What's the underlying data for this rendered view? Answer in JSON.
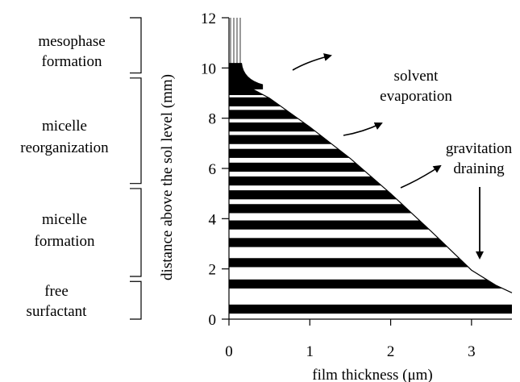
{
  "figure": {
    "xlabel": "film thickness (μm)",
    "ylabel": "distance above the sol level (mm)",
    "x_ticks": [
      "0",
      "1",
      "2",
      "3"
    ],
    "y_ticks": [
      "0",
      "2",
      "4",
      "6",
      "8",
      "10",
      "12"
    ],
    "annotations": {
      "evaporation": [
        "solvent",
        "evaporation"
      ],
      "draining": [
        "gravitation",
        "draining"
      ]
    },
    "stages": [
      {
        "lines": [
          "mesophase",
          "formation"
        ],
        "y_from": 9.8,
        "y_to": 12.0
      },
      {
        "lines": [
          "micelle",
          "reorganization"
        ],
        "y_from": 5.4,
        "y_to": 9.6
      },
      {
        "lines": [
          "micelle",
          "formation"
        ],
        "y_from": 1.7,
        "y_to": 5.2
      },
      {
        "lines": [
          "free",
          "surfactant"
        ],
        "y_from": 0.0,
        "y_to": 1.5
      }
    ]
  },
  "chart_data": {
    "type": "area",
    "x_range": [
      0,
      3.5
    ],
    "y_range": [
      0,
      12
    ],
    "film_profile": {
      "x": [
        0.15,
        0.5,
        1.0,
        1.5,
        2.0,
        2.5,
        3.0,
        3.3,
        3.5
      ],
      "y": [
        9.4,
        8.8,
        7.65,
        6.4,
        5.0,
        3.5,
        1.95,
        1.35,
        1.05
      ]
    },
    "stripe_heights": [
      0.4,
      1.4,
      2.25,
      3.05,
      3.75,
      4.4,
      4.95,
      5.5,
      6.05,
      6.6,
      7.15,
      7.65,
      8.15,
      8.65,
      9.1
    ],
    "meniscus_top": 10.2
  }
}
